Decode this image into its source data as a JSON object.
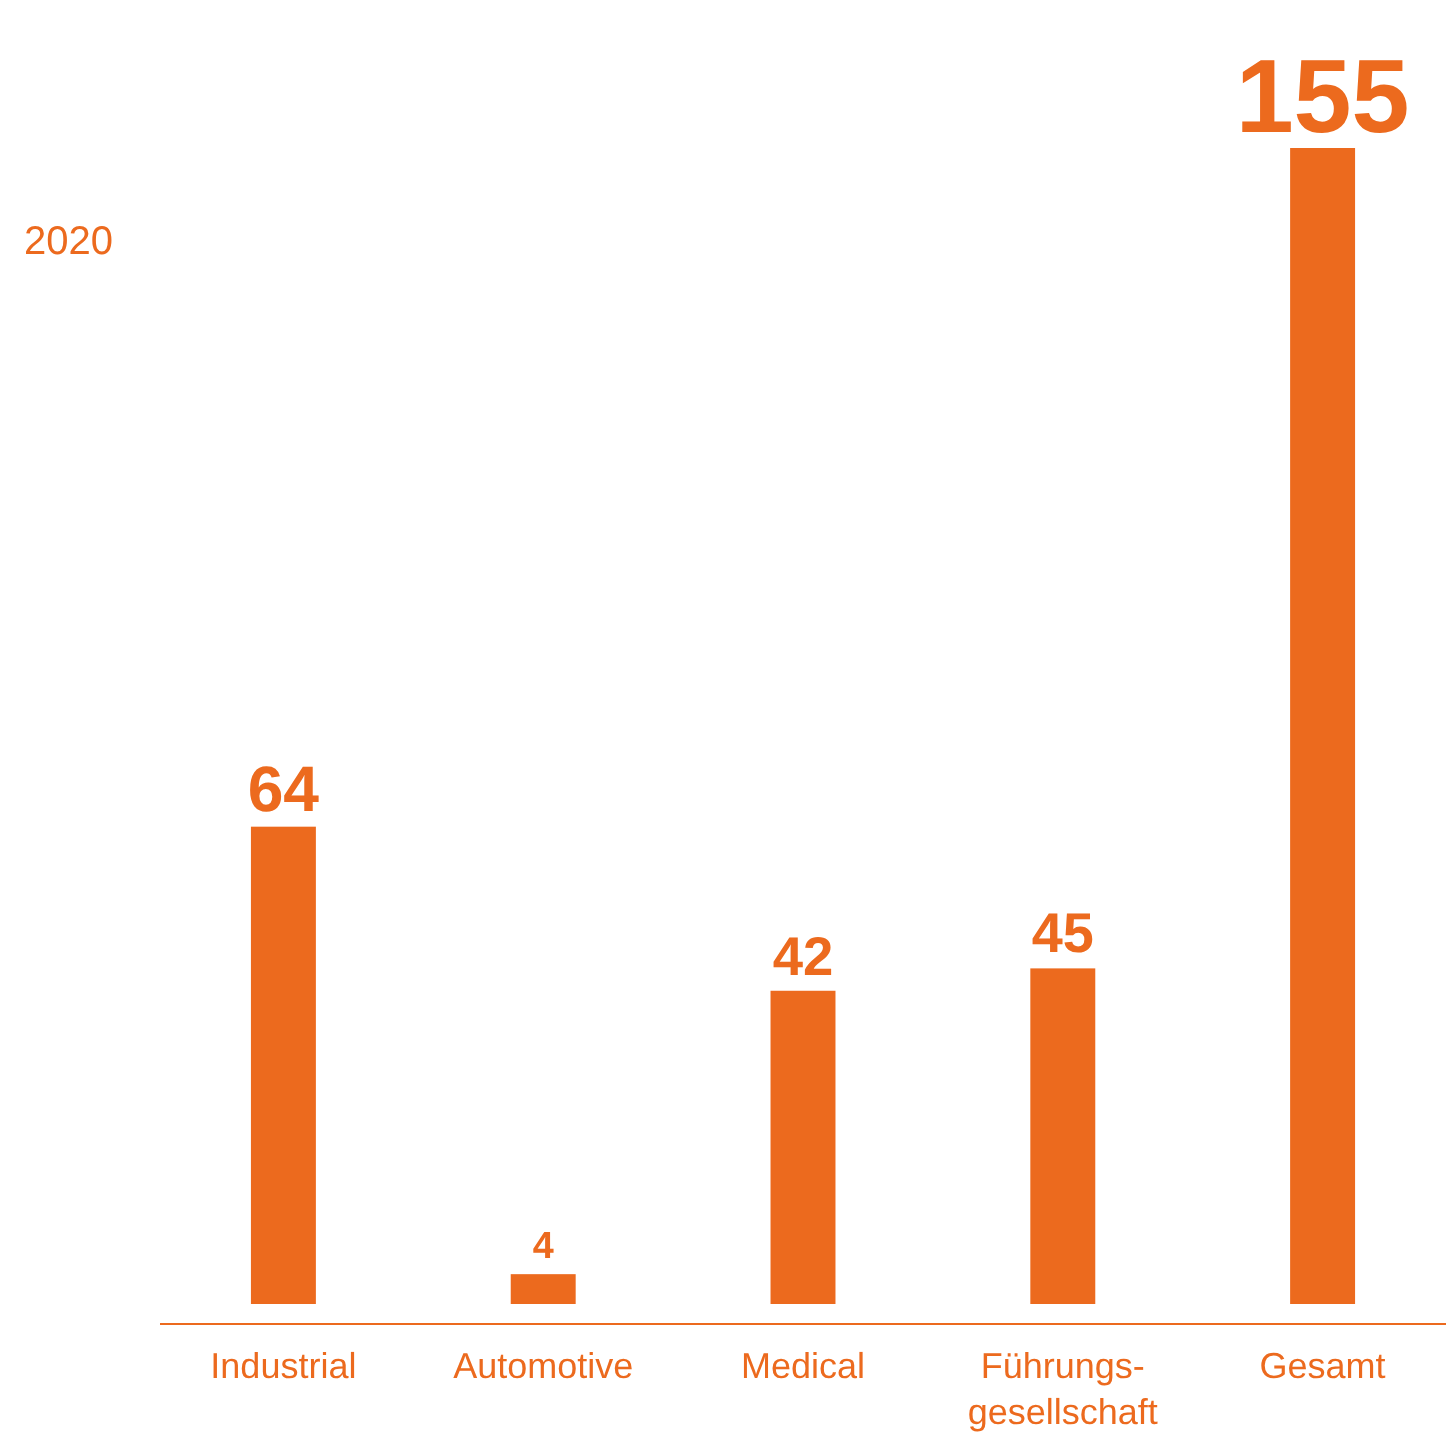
{
  "chart_data": {
    "type": "bar",
    "subtitle": "2020",
    "categories": [
      "Industrial",
      "Automotive",
      "Medical",
      "Führungs-gesellschaft",
      "Gesamt"
    ],
    "values": [
      64,
      4,
      42,
      45,
      155
    ],
    "color": "#ec6a1e",
    "data_labels": true
  }
}
